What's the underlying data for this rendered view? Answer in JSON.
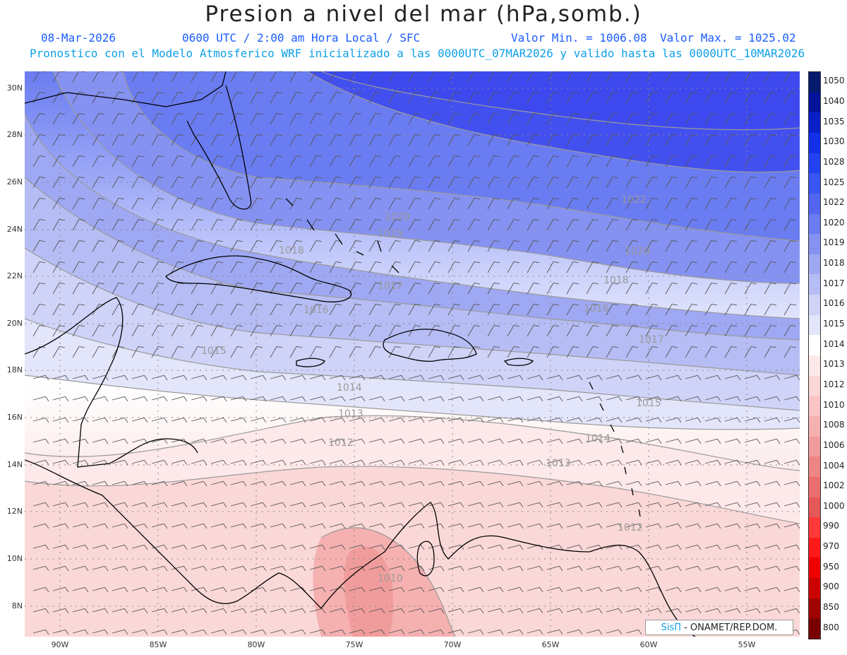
{
  "header": {
    "title": "Presion a nivel del mar (hPa,somb.)",
    "date": "08-Mar-2026",
    "time": "0600 UTC / 2:00 am Hora Local / SFC",
    "min": "Valor Min. = 1006.08",
    "max": "Valor Max. = 1025.02",
    "forecast_note": "Pronostico con el Modelo Atmosferico WRF inicializado a las 0000UTC_07MAR2026 y valido hasta las  0000UTC_10MAR2026"
  },
  "map": {
    "lat_labels": [
      "30N",
      "28N",
      "26N",
      "24N",
      "22N",
      "20N",
      "18N",
      "16N",
      "14N",
      "12N",
      "10N",
      "8N"
    ],
    "lon_labels": [
      "90W",
      "85W",
      "80W",
      "75W",
      "70W",
      "65W",
      "60W",
      "55W"
    ],
    "isobar_labels": [
      {
        "text": "1022"
      },
      {
        "text": "1020"
      },
      {
        "text": "1020"
      },
      {
        "text": "1019"
      },
      {
        "text": "1018"
      },
      {
        "text": "1018"
      },
      {
        "text": "1017"
      },
      {
        "text": "1017"
      },
      {
        "text": "1016"
      },
      {
        "text": "1016"
      },
      {
        "text": "1015"
      },
      {
        "text": "1015"
      },
      {
        "text": "1014"
      },
      {
        "text": "1014"
      },
      {
        "text": "1013"
      },
      {
        "text": "1013"
      },
      {
        "text": "1012"
      },
      {
        "text": "1012"
      },
      {
        "text": "1010"
      }
    ]
  },
  "colorbar": {
    "levels": [
      "1050",
      "1040",
      "1035",
      "1030",
      "1028",
      "1025",
      "1022",
      "1020",
      "1019",
      "1018",
      "1017",
      "1016",
      "1015",
      "1014",
      "1013",
      "1012",
      "1010",
      "1008",
      "1006",
      "1004",
      "1002",
      "1000",
      "990",
      "970",
      "950",
      "900",
      "850",
      "800"
    ],
    "colors": [
      "#061a6e",
      "#06139b",
      "#0a1fc8",
      "#1230e8",
      "#2443f0",
      "#3a56f2",
      "#5266f2",
      "#6a7cf2",
      "#8592f2",
      "#9ea8f3",
      "#b6bdf5",
      "#cfd3f8",
      "#e3e5fa",
      "#ffffff",
      "#fde9e9",
      "#fbd8d8",
      "#f8c4c4",
      "#f5b0b0",
      "#f19c9c",
      "#ee8585",
      "#ea6e6e",
      "#e55858",
      "#ff3a3a",
      "#ff1a1a",
      "#f00000",
      "#cc0000",
      "#a00000",
      "#780000"
    ]
  },
  "footer": {
    "brand": "SisΠ",
    "credit": "- ONAMET/REP.DOM."
  }
}
